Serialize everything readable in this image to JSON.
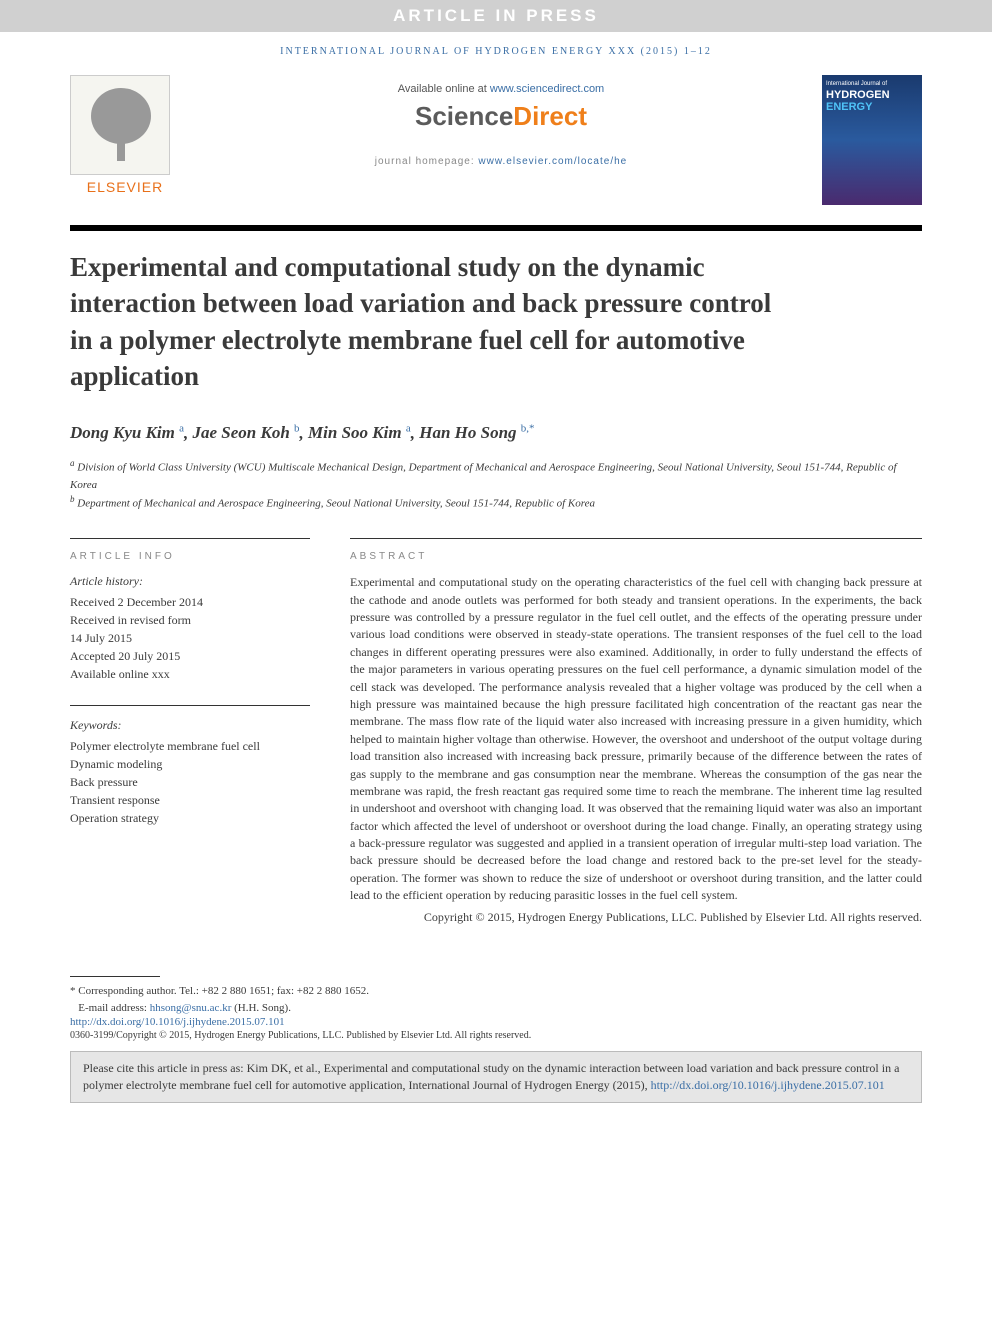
{
  "press_banner": "ARTICLE IN PRESS",
  "journal_header": "INTERNATIONAL JOURNAL OF HYDROGEN ENERGY XXX (2015) 1–12",
  "available_text": "Available online at ",
  "available_link": "www.sciencedirect.com",
  "sd_prefix": "Science",
  "sd_suffix": "Direct",
  "homepage_text": "journal homepage: ",
  "homepage_link": "www.elsevier.com/locate/he",
  "elsevier_name": "ELSEVIER",
  "cover_line1": "International Journal of",
  "cover_line2": "HYDROGEN",
  "cover_line3": "ENERGY",
  "title": "Experimental and computational study on the dynamic interaction between load variation and back pressure control in a polymer electrolyte membrane fuel cell for automotive application",
  "authors": [
    {
      "name": "Dong Kyu Kim",
      "aff": "a"
    },
    {
      "name": "Jae Seon Koh",
      "aff": "b"
    },
    {
      "name": "Min Soo Kim",
      "aff": "a"
    },
    {
      "name": "Han Ho Song",
      "aff": "b,",
      "star": "*"
    }
  ],
  "affiliations": {
    "a": "Division of World Class University (WCU) Multiscale Mechanical Design, Department of Mechanical and Aerospace Engineering, Seoul National University, Seoul 151-744, Republic of Korea",
    "b": "Department of Mechanical and Aerospace Engineering, Seoul National University, Seoul 151-744, Republic of Korea"
  },
  "article_info_head": "ARTICLE INFO",
  "history_head": "Article history:",
  "history": [
    "Received 2 December 2014",
    "Received in revised form",
    "14 July 2015",
    "Accepted 20 July 2015",
    "Available online xxx"
  ],
  "keywords_head": "Keywords:",
  "keywords": [
    "Polymer electrolyte membrane fuel cell",
    "Dynamic modeling",
    "Back pressure",
    "Transient response",
    "Operation strategy"
  ],
  "abstract_head": "ABSTRACT",
  "abstract": "Experimental and computational study on the operating characteristics of the fuel cell with changing back pressure at the cathode and anode outlets was performed for both steady and transient operations. In the experiments, the back pressure was controlled by a pressure regulator in the fuel cell outlet, and the effects of the operating pressure under various load conditions were observed in steady-state operations. The transient responses of the fuel cell to the load changes in different operating pressures were also examined. Additionally, in order to fully understand the effects of the major parameters in various operating pressures on the fuel cell performance, a dynamic simulation model of the cell stack was developed. The performance analysis revealed that a higher voltage was produced by the cell when a high pressure was maintained because the high pressure facilitated high concentration of the reactant gas near the membrane. The mass flow rate of the liquid water also increased with increasing pressure in a given humidity, which helped to maintain higher voltage than otherwise. However, the overshoot and undershoot of the output voltage during load transition also increased with increasing back pressure, primarily because of the difference between the rates of gas supply to the membrane and gas consumption near the membrane. Whereas the consumption of the gas near the membrane was rapid, the fresh reactant gas required some time to reach the membrane. The inherent time lag resulted in undershoot and overshoot with changing load. It was observed that the remaining liquid water was also an important factor which affected the level of undershoot or overshoot during the load change. Finally, an operating strategy using a back-pressure regulator was suggested and applied in a transient operation of irregular multi-step load variation. The back pressure should be decreased before the load change and restored back to the pre-set level for the steady-operation. The former was shown to reduce the size of undershoot or overshoot during transition, and the latter could lead to the efficient operation by reducing parasitic losses in the fuel cell system.",
  "copyright_abstract": "Copyright © 2015, Hydrogen Energy Publications, LLC. Published by Elsevier Ltd. All rights reserved.",
  "corr_label": "* Corresponding author. ",
  "corr_detail": "Tel.: +82 2 880 1651; fax: +82 2 880 1652.",
  "email_label": "E-mail address: ",
  "email": "hhsong@snu.ac.kr",
  "email_name": " (H.H. Song).",
  "doi": "http://dx.doi.org/10.1016/j.ijhydene.2015.07.101",
  "issn_copy": "0360-3199/Copyright © 2015, Hydrogen Energy Publications, LLC. Published by Elsevier Ltd. All rights reserved.",
  "cite_text": "Please cite this article in press as: Kim DK, et al., Experimental and computational study on the dynamic interaction between load variation and back pressure control in a polymer electrolyte membrane fuel cell for automotive application, International Journal of Hydrogen Energy (2015), ",
  "cite_doi": "http://dx.doi.org/10.1016/j.ijhydene.2015.07.101"
}
